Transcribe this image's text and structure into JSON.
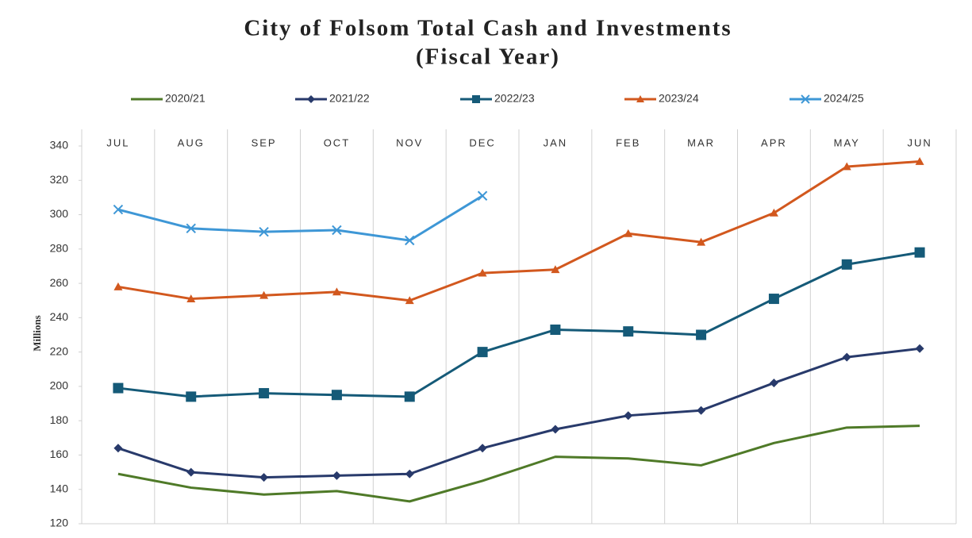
{
  "chart_data": {
    "type": "line",
    "title": [
      "City of Folsom Total Cash and Investments",
      "(Fiscal Year)"
    ],
    "y_label": "Millions",
    "categories": [
      "JUL",
      "AUG",
      "SEP",
      "OCT",
      "NOV",
      "DEC",
      "JAN",
      "FEB",
      "MAR",
      "APR",
      "MAY",
      "JUN"
    ],
    "series": [
      {
        "name": "2020/21",
        "color": "#4f7a28",
        "marker": "none",
        "values": [
          149,
          141,
          137,
          139,
          133,
          145,
          159,
          158,
          154,
          167,
          176,
          177
        ]
      },
      {
        "name": "2021/22",
        "color": "#283a6b",
        "marker": "diamond",
        "values": [
          164,
          150,
          147,
          148,
          149,
          164,
          175,
          183,
          186,
          202,
          217,
          222
        ]
      },
      {
        "name": "2022/23",
        "color": "#155a78",
        "marker": "square",
        "values": [
          199,
          194,
          196,
          195,
          194,
          220,
          233,
          232,
          230,
          251,
          271,
          278
        ]
      },
      {
        "name": "2023/24",
        "color": "#d2581e",
        "marker": "triangle",
        "values": [
          258,
          251,
          253,
          255,
          250,
          266,
          268,
          289,
          284,
          301,
          328,
          331
        ]
      },
      {
        "name": "2024/25",
        "color": "#3e97d6",
        "marker": "x",
        "values": [
          303,
          292,
          290,
          291,
          285,
          311,
          null,
          null,
          null,
          null,
          null,
          null
        ]
      }
    ],
    "ylim": [
      120,
      340
    ],
    "yticks": [
      120,
      140,
      160,
      180,
      200,
      220,
      240,
      260,
      280,
      300,
      320,
      340
    ]
  }
}
